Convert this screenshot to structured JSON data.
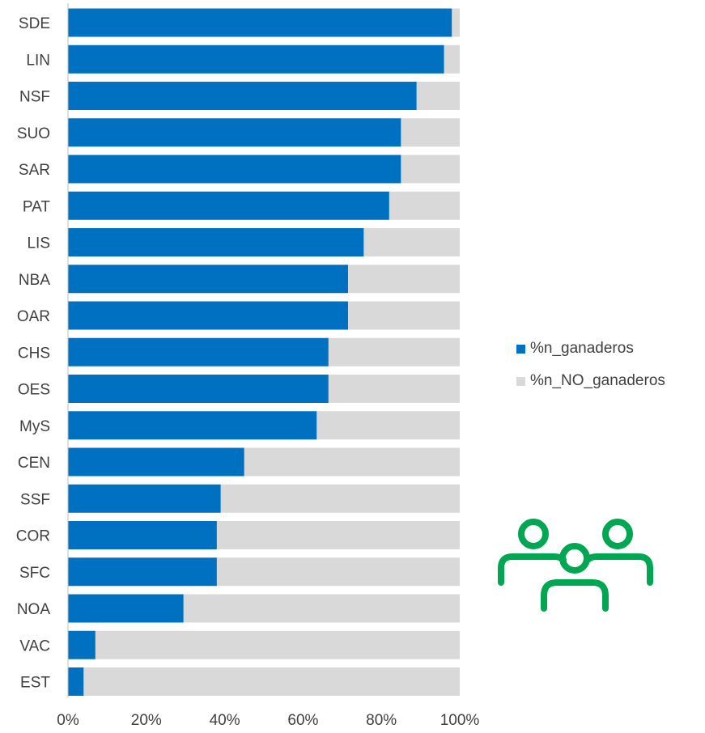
{
  "chart_data": {
    "type": "bar",
    "orientation": "horizontal",
    "stacked": "percent",
    "categories": [
      "SDE",
      "LIN",
      "NSF",
      "SUO",
      "SAR",
      "PAT",
      "LIS",
      "NBA",
      "OAR",
      "CHS",
      "OES",
      "MyS",
      "CEN",
      "SSF",
      "COR",
      "SFC",
      "NOA",
      "VAC",
      "EST"
    ],
    "series": [
      {
        "name": "%n_ganaderos",
        "color": "#0070C0",
        "values": [
          98,
          96,
          89,
          85,
          85,
          82,
          75.5,
          71.5,
          71.5,
          66.5,
          66.5,
          63.5,
          45,
          39,
          38,
          38,
          29.5,
          7,
          4
        ]
      },
      {
        "name": "%n_NO_ganaderos",
        "color": "#D9D9D9",
        "values": [
          2,
          4,
          11,
          15,
          15,
          18,
          24.5,
          28.5,
          28.5,
          33.5,
          33.5,
          36.5,
          55,
          61,
          62,
          62,
          70.5,
          93,
          96
        ]
      }
    ],
    "xlim": [
      0,
      100
    ],
    "x_ticks": [
      "0%",
      "20%",
      "40%",
      "60%",
      "80%",
      "100%"
    ],
    "title": "",
    "xlabel": "",
    "ylabel": "",
    "legend_position": "right",
    "grid": false
  },
  "decoration": {
    "icon": "people-group-icon",
    "color": "#00A651"
  }
}
